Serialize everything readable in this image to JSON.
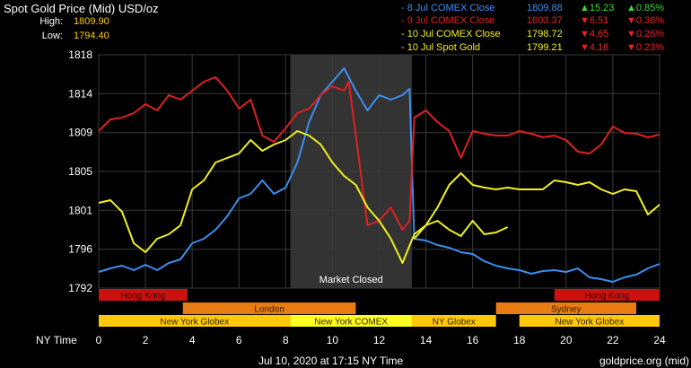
{
  "header": {
    "title": "Spot Gold Price (Mid) USD/oz",
    "high_label": "High:",
    "high_value": "1809.90",
    "low_label": "Low:",
    "low_value": "1794.40"
  },
  "legend": [
    {
      "label": "- 8 Jul COMEX Close",
      "price": "1809.88",
      "change": "▲15.23",
      "pct": "▲0.85%",
      "color": "#3b8ff0",
      "change_color": "#33dd33"
    },
    {
      "label": "- 9 Jul COMEX Close",
      "price": "1803.37",
      "change": "▼6.51",
      "pct": "▼0.36%",
      "color": "#e02020",
      "change_color": "#ee2222"
    },
    {
      "label": "- 10 Jul COMEX Close",
      "price": "1798.72",
      "change": "▼4.65",
      "pct": "▼0.26%",
      "color": "#f0f020",
      "change_color": "#ee2222"
    },
    {
      "label": "- 10 Jul Spot Gold",
      "price": "1799.21",
      "change": "▼4.16",
      "pct": "▼0.23%",
      "color": "#f0f020",
      "change_color": "#ee2222"
    }
  ],
  "chart_data": {
    "type": "line",
    "ylim": [
      1792,
      1818
    ],
    "xlim": [
      0,
      24
    ],
    "y_ticks": [
      "1792",
      "1796",
      "1801",
      "1805",
      "1809",
      "1814",
      "1818"
    ],
    "y_tick_values": [
      1792,
      1796.33,
      1800.67,
      1805,
      1809.33,
      1813.67,
      1818
    ],
    "x_ticks": [
      0,
      2,
      4,
      6,
      8,
      10,
      12,
      14,
      16,
      18,
      20,
      22,
      24
    ],
    "x_tick_labels": [
      "0",
      "2",
      "4",
      "6",
      "8",
      "10",
      "12",
      "14",
      "16",
      "18",
      "20",
      "22",
      "24"
    ],
    "xlabel": "NY Time",
    "market_closed": {
      "label": "Market Closed",
      "from": 8.2,
      "to": 13.4
    },
    "series": [
      {
        "color": "#3b8ff0",
        "x": [
          0,
          0.5,
          1,
          1.5,
          2,
          2.5,
          3,
          3.5,
          4,
          4.5,
          5,
          5.5,
          6,
          6.5,
          7,
          7.5,
          8,
          8.5,
          9,
          9.5,
          10,
          10.5,
          11,
          11.5,
          12,
          12.5,
          13,
          13.3,
          13.5,
          14,
          14.5,
          15,
          15.5,
          16,
          16.5,
          17,
          17.5,
          18,
          18.5,
          19,
          19.5,
          20,
          20.5,
          21,
          21.5,
          22,
          22.5,
          23,
          23.5,
          24
        ],
        "y": [
          1793.8,
          1794.2,
          1794.5,
          1794,
          1794.6,
          1794,
          1794.8,
          1795.2,
          1797,
          1797.5,
          1798.5,
          1800,
          1802,
          1802.5,
          1804,
          1802.5,
          1803.2,
          1806,
          1810.5,
          1813.5,
          1815,
          1816.5,
          1814,
          1811.8,
          1813.5,
          1813,
          1813.5,
          1814.2,
          1797.5,
          1797.3,
          1796.8,
          1796.5,
          1796,
          1795.8,
          1795,
          1794.5,
          1794.2,
          1794,
          1793.6,
          1793.9,
          1794,
          1793.8,
          1794.2,
          1793.2,
          1793,
          1792.7,
          1793.2,
          1793.5,
          1794.2,
          1794.7
        ]
      },
      {
        "color": "#e02020",
        "x": [
          0,
          0.5,
          1,
          1.5,
          2,
          2.5,
          3,
          3.5,
          4,
          4.5,
          5,
          5.5,
          6,
          6.5,
          7,
          7.5,
          8,
          8.5,
          9,
          9.5,
          10,
          10.5,
          10.7,
          11,
          11.3,
          11.5,
          12,
          12.5,
          13,
          13.3,
          13.5,
          14,
          14.5,
          15,
          15.5,
          16,
          16.5,
          17,
          17.5,
          18,
          18.5,
          19,
          19.5,
          20,
          20.5,
          21,
          21.5,
          22,
          22.5,
          23,
          23.5,
          24
        ],
        "y": [
          1809.5,
          1810.8,
          1811,
          1811.5,
          1812.5,
          1811.8,
          1813.5,
          1813,
          1814,
          1815,
          1815.5,
          1814,
          1812,
          1813,
          1809,
          1808.3,
          1809.8,
          1811.5,
          1812,
          1813.5,
          1814.5,
          1814,
          1815,
          1809,
          1803,
          1799,
          1799.5,
          1801,
          1798.5,
          1799.5,
          1811,
          1811.8,
          1810.5,
          1809.5,
          1806.5,
          1809.5,
          1809.2,
          1809,
          1809,
          1809.5,
          1809.2,
          1808.8,
          1809,
          1808.5,
          1807.2,
          1807,
          1808,
          1810,
          1809.3,
          1809.2,
          1808.8,
          1809.1
        ]
      },
      {
        "color": "#f0f020",
        "x": [
          0,
          0.5,
          1,
          1.5,
          2,
          2.5,
          3,
          3.5,
          4,
          4.5,
          5,
          5.5,
          6,
          6.5,
          7,
          7.5,
          8,
          8.5,
          9,
          9.5,
          10,
          10.5,
          11,
          11.5,
          12,
          12.5,
          13,
          13.5,
          14,
          14.5,
          15,
          15.5,
          16,
          16.5,
          17,
          17.5,
          18,
          18.5,
          19,
          19.5,
          20,
          20.5,
          21,
          21.5,
          22,
          22.5,
          23,
          23.5,
          24
        ],
        "y": [
          1801.5,
          1801.8,
          1800.5,
          1797,
          1796,
          1797.5,
          1798,
          1799,
          1803,
          1804,
          1806,
          1806.5,
          1807,
          1808.5,
          1807.3,
          1808,
          1808.5,
          1809.5,
          1809,
          1808,
          1806,
          1804.5,
          1803.5,
          1801,
          1799.5,
          1797.5,
          1794.8,
          1798,
          1799,
          1801,
          1803.5,
          1804.8,
          1803.5,
          1803.2,
          1803,
          1803.2,
          1803,
          1803,
          1803,
          1804,
          1803.8,
          1803.5,
          1803.8,
          1803,
          1802.5,
          1803,
          1802.8,
          1800.2,
          1801.3
        ]
      },
      {
        "color": "#f0f020",
        "x": [
          13.5,
          14,
          14.5,
          15,
          15.5,
          16,
          16.5,
          17,
          17.5
        ],
        "y": [
          1797.5,
          1799,
          1799.5,
          1798.5,
          1797.8,
          1799.5,
          1798,
          1798.2,
          1798.8
        ]
      }
    ]
  },
  "sessions": [
    {
      "label": "Hong Kong",
      "from": 0,
      "to": 3.8,
      "row": 0,
      "color": "#cc1111",
      "text_color": "#330000"
    },
    {
      "label": "Hong Kong",
      "from": 19.5,
      "to": 24,
      "row": 0,
      "color": "#cc1111",
      "text_color": "#330000"
    },
    {
      "label": "London",
      "from": 3.6,
      "to": 11.0,
      "row": 1,
      "color": "#e87c12",
      "text_color": "#332200"
    },
    {
      "label": "Sydney",
      "from": 17.0,
      "to": 23.0,
      "row": 1,
      "color": "#e87c12",
      "text_color": "#332200"
    },
    {
      "label": "New York Globex",
      "from": 0,
      "to": 8.2,
      "row": 2,
      "color": "#ffc808",
      "text_color": "#332200"
    },
    {
      "label": "New York COMEX",
      "from": 8.2,
      "to": 13.4,
      "row": 2,
      "color": "#ffff20",
      "text_color": "#332200"
    },
    {
      "label": "NY Globex",
      "from": 13.4,
      "to": 17.0,
      "row": 2,
      "color": "#ffc808",
      "text_color": "#332200"
    },
    {
      "label": "New York Globex",
      "from": 18.0,
      "to": 24,
      "row": 2,
      "color": "#ffc808",
      "text_color": "#332200"
    }
  ],
  "footer": {
    "timestamp": "Jul 10, 2020 at 17:15 NY Time",
    "source": "goldprice.org (mid)"
  }
}
